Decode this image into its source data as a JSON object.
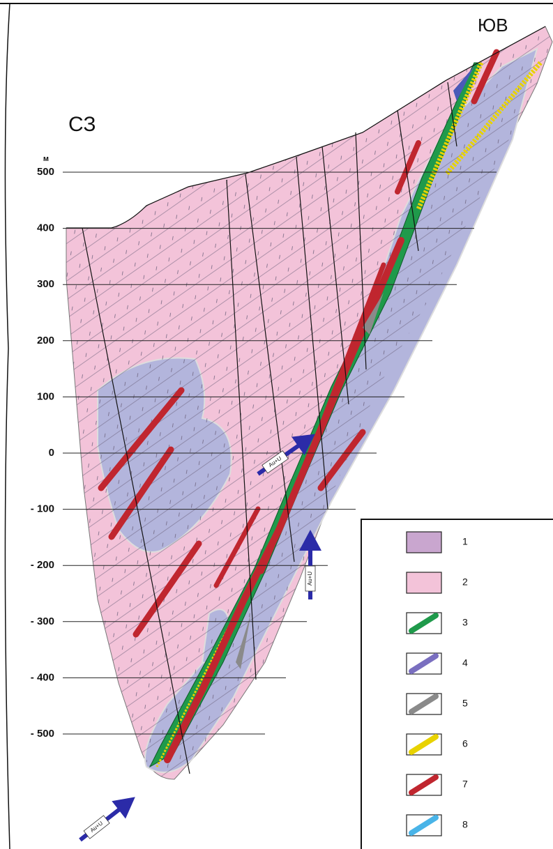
{
  "header": {
    "left_label": "СЗ",
    "right_label": "ЮВ",
    "unit": "м"
  },
  "depth_labels": [
    "500",
    "400",
    "300",
    "200",
    "100",
    "0",
    "- 100",
    "- 200",
    "- 300",
    "- 400",
    "- 500"
  ],
  "arrows": [
    {
      "label": "Au+U"
    },
    {
      "label": "Au+U"
    },
    {
      "label": "Au+U"
    }
  ],
  "legend": {
    "items": [
      {
        "label": "1"
      },
      {
        "label": "2"
      },
      {
        "label": "3"
      },
      {
        "label": "4"
      },
      {
        "label": "5"
      },
      {
        "label": "6"
      },
      {
        "label": "7"
      },
      {
        "label": "8"
      }
    ]
  }
}
